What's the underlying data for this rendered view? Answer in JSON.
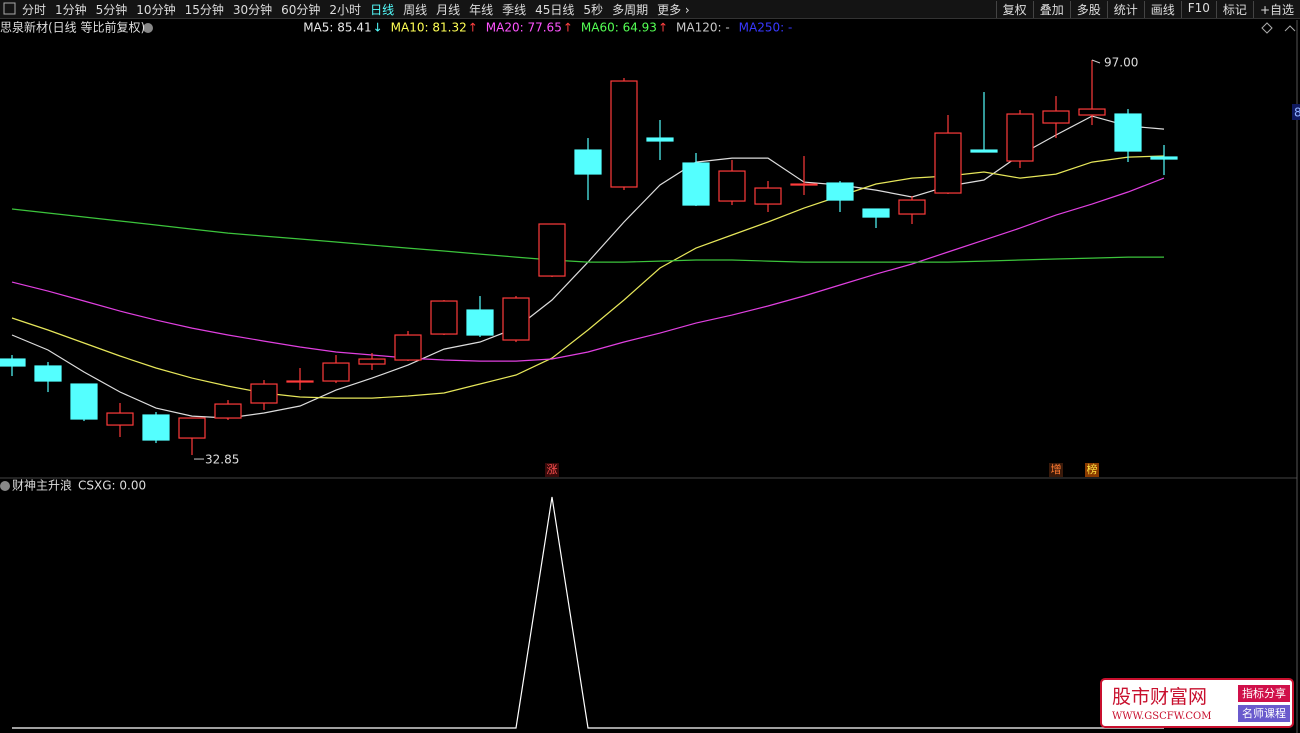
{
  "toolbar": {
    "periods": [
      "分时",
      "1分钟",
      "5分钟",
      "10分钟",
      "15分钟",
      "30分钟",
      "60分钟",
      "2小时",
      "日线",
      "周线",
      "月线",
      "年线",
      "季线",
      "45日线",
      "5秒",
      "多周期",
      "更多 ›"
    ],
    "active_period": 8,
    "tools": [
      "复权",
      "叠加",
      "多股",
      "统计",
      "画线",
      "F10",
      "标记",
      "+自选"
    ]
  },
  "right_axis": {
    "label": "8"
  },
  "chart_data": [
    {
      "type": "candlestick",
      "title": "思泉新材(日线 等比前复权)",
      "ylim": [
        30.42,
        103.5
      ],
      "up_color": "#ff3b3b",
      "down_color": "#54ffff",
      "categories": [
        null,
        null,
        null,
        null,
        null,
        null,
        null,
        null,
        null,
        null,
        null,
        null,
        null,
        null,
        null,
        null,
        null,
        null,
        null,
        null,
        null,
        null,
        null,
        null,
        null,
        null,
        null,
        null,
        null,
        null,
        null,
        null,
        null
      ],
      "open": [
        48.44,
        47.31,
        44.38,
        37.72,
        39.35,
        35.61,
        38.86,
        41.3,
        44.71,
        44.87,
        47.63,
        48.28,
        52.5,
        56.4,
        51.53,
        61.92,
        82.38,
        76.38,
        84.33,
        80.27,
        74.1,
        73.61,
        76.7,
        77.02,
        72.8,
        71.99,
        75.4,
        82.38,
        80.6,
        86.77,
        88.07,
        88.23,
        81.25
      ],
      "high": [
        49.09,
        47.96,
        44.38,
        41.3,
        39.84,
        38.86,
        41.78,
        45.03,
        46.98,
        49.09,
        49.42,
        52.99,
        58.02,
        58.67,
        58.67,
        70.37,
        84.33,
        94.08,
        87.26,
        81.9,
        80.76,
        77.35,
        81.41,
        77.35,
        72.8,
        74.91,
        88.07,
        91.8,
        88.88,
        91.15,
        97.0,
        89.04,
        83.2
      ],
      "low": [
        45.68,
        43.08,
        38.37,
        35.78,
        34.8,
        32.85,
        38.54,
        40.16,
        43.41,
        44.54,
        46.66,
        48.12,
        52.34,
        52.02,
        51.2,
        61.76,
        74.26,
        75.89,
        80.76,
        73.29,
        73.45,
        72.32,
        75.08,
        72.32,
        69.72,
        70.37,
        75.24,
        82.06,
        79.46,
        84.33,
        86.44,
        80.44,
        78.32
      ],
      "close": [
        47.31,
        44.87,
        38.7,
        39.67,
        35.29,
        38.86,
        41.13,
        44.38,
        44.87,
        47.79,
        48.44,
        52.34,
        57.86,
        52.34,
        58.35,
        70.37,
        78.49,
        93.59,
        83.85,
        73.45,
        78.97,
        76.21,
        76.86,
        74.26,
        71.5,
        74.26,
        85.14,
        82.06,
        88.23,
        88.72,
        89.04,
        82.22,
        80.92
      ],
      "series": [
        {
          "legend": "MA5: 85.41",
          "arrow": "↓",
          "arrow_color": "#54ffff",
          "label_color": "#e8e8e8",
          "color": "#dcdcdc",
          "values": [
            52.34,
            49.9,
            46.33,
            43.08,
            40.48,
            39.18,
            38.86,
            39.67,
            40.81,
            43.4,
            45.35,
            47.46,
            50.06,
            51.2,
            53.47,
            58.02,
            64.19,
            70.69,
            76.7,
            80.43,
            81.08,
            81.08,
            77.18,
            76.7,
            75.88,
            74.75,
            76.53,
            77.51,
            81.57,
            84.82,
            87.9,
            86.28,
            85.79
          ]
        },
        {
          "legend": "MA10: 81.32",
          "arrow": "↑",
          "arrow_color": "#ff4040",
          "label_color": "#ffff54",
          "color": "#e6e65a",
          "values": [
            55.1,
            53.15,
            51.04,
            48.93,
            46.98,
            45.35,
            44.05,
            42.92,
            42.27,
            42.1,
            42.1,
            42.43,
            42.92,
            44.38,
            45.84,
            48.6,
            53.15,
            58.02,
            63.22,
            66.46,
            68.58,
            70.69,
            72.96,
            74.91,
            76.86,
            77.83,
            78.16,
            78.81,
            77.83,
            78.48,
            80.43,
            81.24,
            81.41
          ]
        },
        {
          "legend": "MA20: 77.65",
          "arrow": "↑",
          "arrow_color": "#ff4040",
          "label_color": "#ff54ff",
          "color": "#e040e0",
          "values": [
            60.94,
            59.48,
            57.86,
            56.23,
            54.77,
            53.47,
            52.34,
            51.36,
            50.39,
            49.58,
            49.09,
            48.6,
            48.28,
            48.11,
            48.11,
            48.44,
            49.58,
            51.2,
            52.66,
            54.28,
            55.58,
            57.05,
            58.67,
            60.46,
            62.24,
            63.87,
            65.82,
            67.76,
            69.71,
            71.82,
            73.61,
            75.56,
            77.83
          ]
        },
        {
          "legend": "MA60: 64.93",
          "arrow": "↑",
          "arrow_color": "#ff4040",
          "label_color": "#54ff54",
          "color": "#3cc43c",
          "values": [
            72.8,
            72.15,
            71.5,
            70.85,
            70.2,
            69.55,
            68.9,
            68.41,
            67.93,
            67.44,
            66.95,
            66.46,
            65.98,
            65.49,
            65.0,
            64.52,
            64.19,
            64.19,
            64.35,
            64.52,
            64.52,
            64.35,
            64.19,
            64.19,
            64.19,
            64.19,
            64.19,
            64.35,
            64.52,
            64.68,
            64.84,
            65.0,
            65.0
          ]
        },
        {
          "legend": "MA120: -",
          "label_color": "#c8c8c8",
          "color": "#c8c8c8"
        },
        {
          "legend": "MA250: -",
          "label_color": "#3838ff",
          "color": "#3838ff"
        }
      ],
      "annotations": [
        {
          "text": "97.00",
          "x": 30,
          "at": "high"
        },
        {
          "text": "32.85",
          "x": 5,
          "at": "low"
        }
      ],
      "signals": [
        {
          "text": "涨",
          "x": 15,
          "color": "#ff5050",
          "background": "#3a0a0a"
        },
        {
          "text": "增",
          "x": 29,
          "color": "#ff7a30",
          "background": "#3a1a0a"
        },
        {
          "text": "榜",
          "x": 30,
          "color": "#ffe040",
          "background": "#8a3a00"
        }
      ]
    },
    {
      "type": "line",
      "title": "财神主升浪",
      "legend": "CSXG: 0.00",
      "color": "#ffffff",
      "ylim": [
        0,
        1
      ],
      "categories": [
        null,
        null,
        null,
        null,
        null,
        null,
        null,
        null,
        null,
        null,
        null,
        null,
        null,
        null,
        null,
        null,
        null,
        null,
        null,
        null,
        null,
        null,
        null,
        null,
        null,
        null,
        null,
        null,
        null,
        null,
        null,
        null,
        null
      ],
      "values": [
        0,
        0,
        0,
        0,
        0,
        0,
        0,
        0,
        0,
        0,
        0,
        0,
        0,
        0,
        0,
        1,
        0,
        0,
        0,
        0,
        0,
        0,
        0,
        0,
        0,
        0,
        0,
        0,
        0,
        0,
        0,
        0,
        0
      ]
    }
  ],
  "watermark": {
    "name": "股市财富网",
    "url": "WWW.GSCFW.COM",
    "badges": [
      "指标分享",
      "名师课程"
    ]
  }
}
